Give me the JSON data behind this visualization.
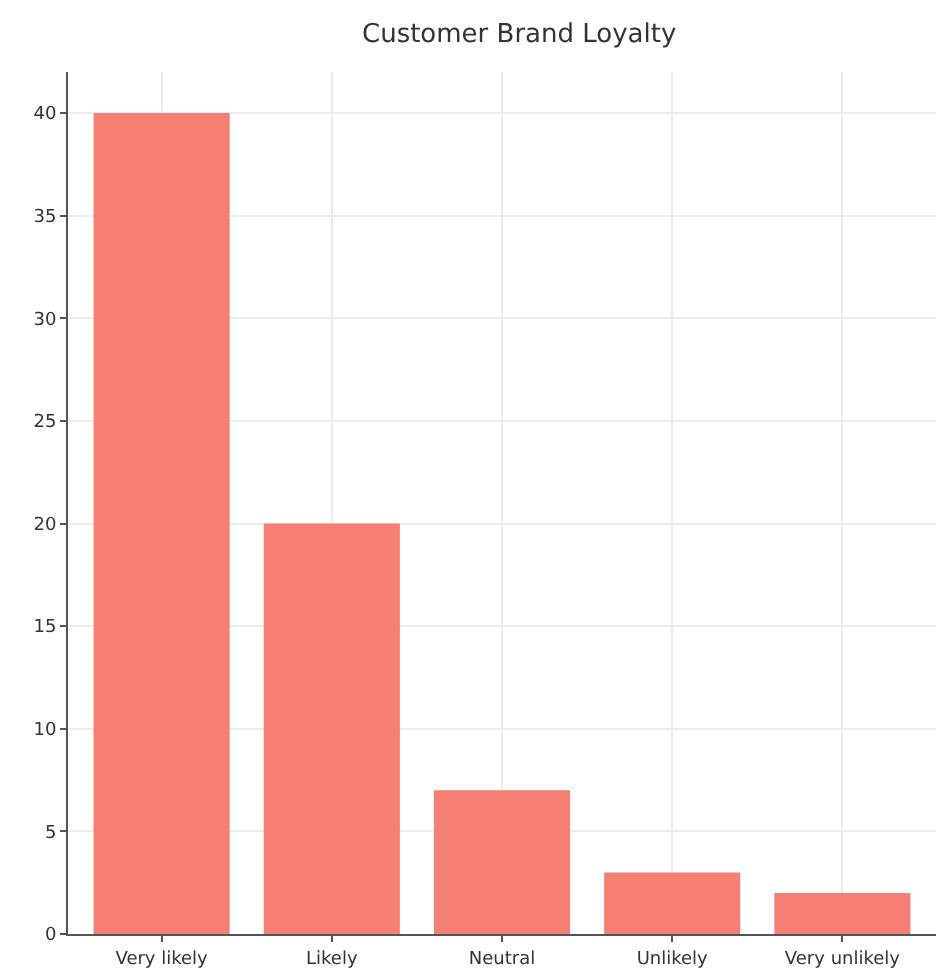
{
  "chart_data": {
    "type": "bar",
    "title": "Customer Brand Loyalty",
    "categories": [
      "Very likely",
      "Likely",
      "Neutral",
      "Unlikely",
      "Very unlikely"
    ],
    "values": [
      40,
      20,
      7,
      3,
      2
    ],
    "color": "#f47f72",
    "ylim": [
      0,
      42
    ],
    "yticks": [
      0,
      5,
      10,
      15,
      20,
      25,
      30,
      35,
      40
    ],
    "grid": true
  }
}
